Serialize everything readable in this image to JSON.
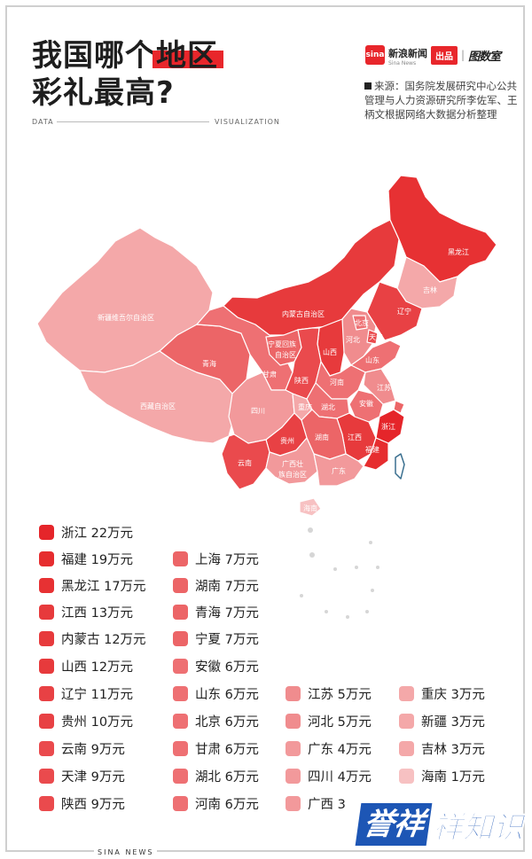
{
  "title": {
    "line1_pre": "我国哪个",
    "line1_hl": "地区",
    "line2": "彩礼最高?"
  },
  "taglines": {
    "left": "DATA",
    "right": "VISUALIZATION"
  },
  "brand": {
    "logo_text": "sina",
    "name": "新浪新闻",
    "name_en": "Sina News",
    "chupin": "出品",
    "separator": "|",
    "datalab": "图数室"
  },
  "source": "来源：国务院发展研究中心公共管理与人力资源研究所李佐军、王柄文根据网络大数据分析整理",
  "colors": {
    "accent": "#e8262b",
    "tier_22": "#e5252a",
    "tier_19": "#e62d2f",
    "tier_17": "#e73133",
    "tier_12": "#e73a3c",
    "tier_10": "#e84144",
    "tier_9": "#ea4a4d",
    "tier_7": "#ec6567",
    "tier_6": "#ee7073",
    "tier_5": "#f08c8e",
    "tier_4": "#f2999b",
    "tier_3": "#f4a8a9",
    "tier_1": "#f7c1c2"
  },
  "map_labels": {
    "heilongjiang": "黑龙江",
    "jilin": "吉林",
    "liaoning": "辽宁",
    "neimenggu": "内蒙古自治区",
    "xinjiang": "新疆维吾尔自治区",
    "xizang": "西藏自治区",
    "qinghai": "青海",
    "ningxia_1": "宁夏回族",
    "ningxia_2": "自治区",
    "gansu": "甘肃",
    "shaanxi": "陕西",
    "shanxi": "山西",
    "beijing": "北京",
    "tianjin": "天津",
    "hebei": "河北",
    "shandong": "山东",
    "henan": "河南",
    "jiangsu": "江苏",
    "anhui": "安徽",
    "shanghai": "上海",
    "sichuan": "四川",
    "chongqing": "重庆",
    "hubei": "湖北",
    "zhejiang": "浙江",
    "hunan": "湖南",
    "jiangxi": "江西",
    "guizhou": "贵州",
    "yunnan": "云南",
    "fujian": "福建",
    "guangxi_1": "广西壮",
    "guangxi_2": "族自治区",
    "guangdong": "广东",
    "hainan": "海南"
  },
  "legend": {
    "col1": [
      {
        "label": "浙江 22万元",
        "tier": "tier_22"
      },
      {
        "label": "福建 19万元",
        "tier": "tier_19"
      },
      {
        "label": "黑龙江 17万元",
        "tier": "tier_17"
      },
      {
        "label": "江西 13万元",
        "tier": "tier_12"
      },
      {
        "label": "内蒙古 12万元",
        "tier": "tier_12"
      },
      {
        "label": "山西 12万元",
        "tier": "tier_12"
      },
      {
        "label": "辽宁 11万元",
        "tier": "tier_10"
      },
      {
        "label": "贵州 10万元",
        "tier": "tier_10"
      },
      {
        "label": "云南 9万元",
        "tier": "tier_9"
      },
      {
        "label": "天津 9万元",
        "tier": "tier_9"
      },
      {
        "label": "陕西 9万元",
        "tier": "tier_9"
      }
    ],
    "col2": [
      {
        "label": "上海 7万元",
        "tier": "tier_7"
      },
      {
        "label": "湖南 7万元",
        "tier": "tier_7"
      },
      {
        "label": "青海 7万元",
        "tier": "tier_7"
      },
      {
        "label": "宁夏 7万元",
        "tier": "tier_7"
      },
      {
        "label": "安徽 6万元",
        "tier": "tier_6"
      },
      {
        "label": "山东 6万元",
        "tier": "tier_6"
      },
      {
        "label": "北京 6万元",
        "tier": "tier_6"
      },
      {
        "label": "甘肃 6万元",
        "tier": "tier_6"
      },
      {
        "label": "湖北 6万元",
        "tier": "tier_6"
      },
      {
        "label": "河南 6万元",
        "tier": "tier_6"
      }
    ],
    "col3": [
      {
        "label": "江苏 5万元",
        "tier": "tier_5"
      },
      {
        "label": "河北 5万元",
        "tier": "tier_5"
      },
      {
        "label": "广东 4万元",
        "tier": "tier_4"
      },
      {
        "label": "四川 4万元",
        "tier": "tier_4"
      },
      {
        "label": "广西 3",
        "tier": "tier_4"
      }
    ],
    "col4": [
      {
        "label": "重庆 3万元",
        "tier": "tier_3"
      },
      {
        "label": "新疆 3万元",
        "tier": "tier_3"
      },
      {
        "label": "吉林 3万元",
        "tier": "tier_3"
      },
      {
        "label": "海南 1万元",
        "tier": "tier_1"
      }
    ]
  },
  "footer": "SINA NEWS",
  "watermark": {
    "part1": "誉祥",
    "part2": "祥知识"
  }
}
